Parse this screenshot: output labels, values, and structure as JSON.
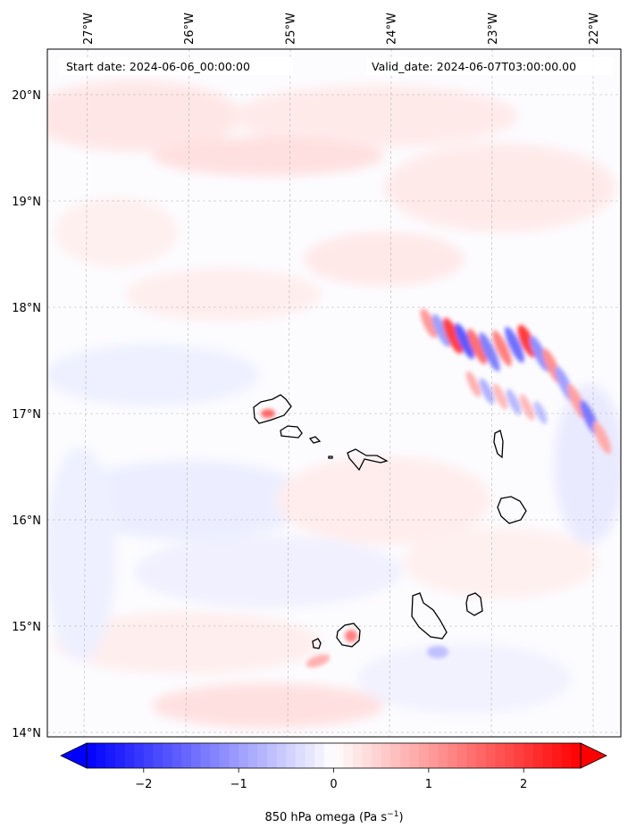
{
  "map": {
    "start_date_text": "Start date: 2024-06-06_00:00:00",
    "valid_date_text": "Valid_date: 2024-06-07T03:00:00.00",
    "lon_ticks": [
      {
        "value": -27,
        "label": "27°W"
      },
      {
        "value": -26,
        "label": "26°W"
      },
      {
        "value": -25,
        "label": "25°W"
      },
      {
        "value": -24,
        "label": "24°W"
      },
      {
        "value": -23,
        "label": "23°W"
      },
      {
        "value": -22,
        "label": "22°W"
      }
    ],
    "lat_ticks": [
      {
        "value": 14,
        "label": "14°N"
      },
      {
        "value": 15,
        "label": "15°N"
      },
      {
        "value": 16,
        "label": "16°N"
      },
      {
        "value": 17,
        "label": "17°N"
      },
      {
        "value": 18,
        "label": "18°N"
      },
      {
        "value": 19,
        "label": "19°N"
      },
      {
        "value": 20,
        "label": "20°N"
      }
    ],
    "lon_range": [
      -27.33,
      -21.76
    ],
    "lat_range": [
      13.96,
      20.42
    ],
    "gridlines": "dashed",
    "colormap": "bwr",
    "color_min": "#0000ff",
    "color_mid": "#ffffff",
    "color_max": "#ff0000"
  },
  "colorbar": {
    "label": "850 hPa omega (Pa s",
    "label_sup": "−1",
    "label_end": ")",
    "range": [
      -2.6,
      2.6
    ],
    "ticks": [
      {
        "value": -2,
        "label": "−2"
      },
      {
        "value": -1,
        "label": "−1"
      },
      {
        "value": 0,
        "label": "0"
      },
      {
        "value": 1,
        "label": "1"
      },
      {
        "value": 2,
        "label": "2"
      }
    ],
    "extend": "both",
    "levels": 52
  }
}
